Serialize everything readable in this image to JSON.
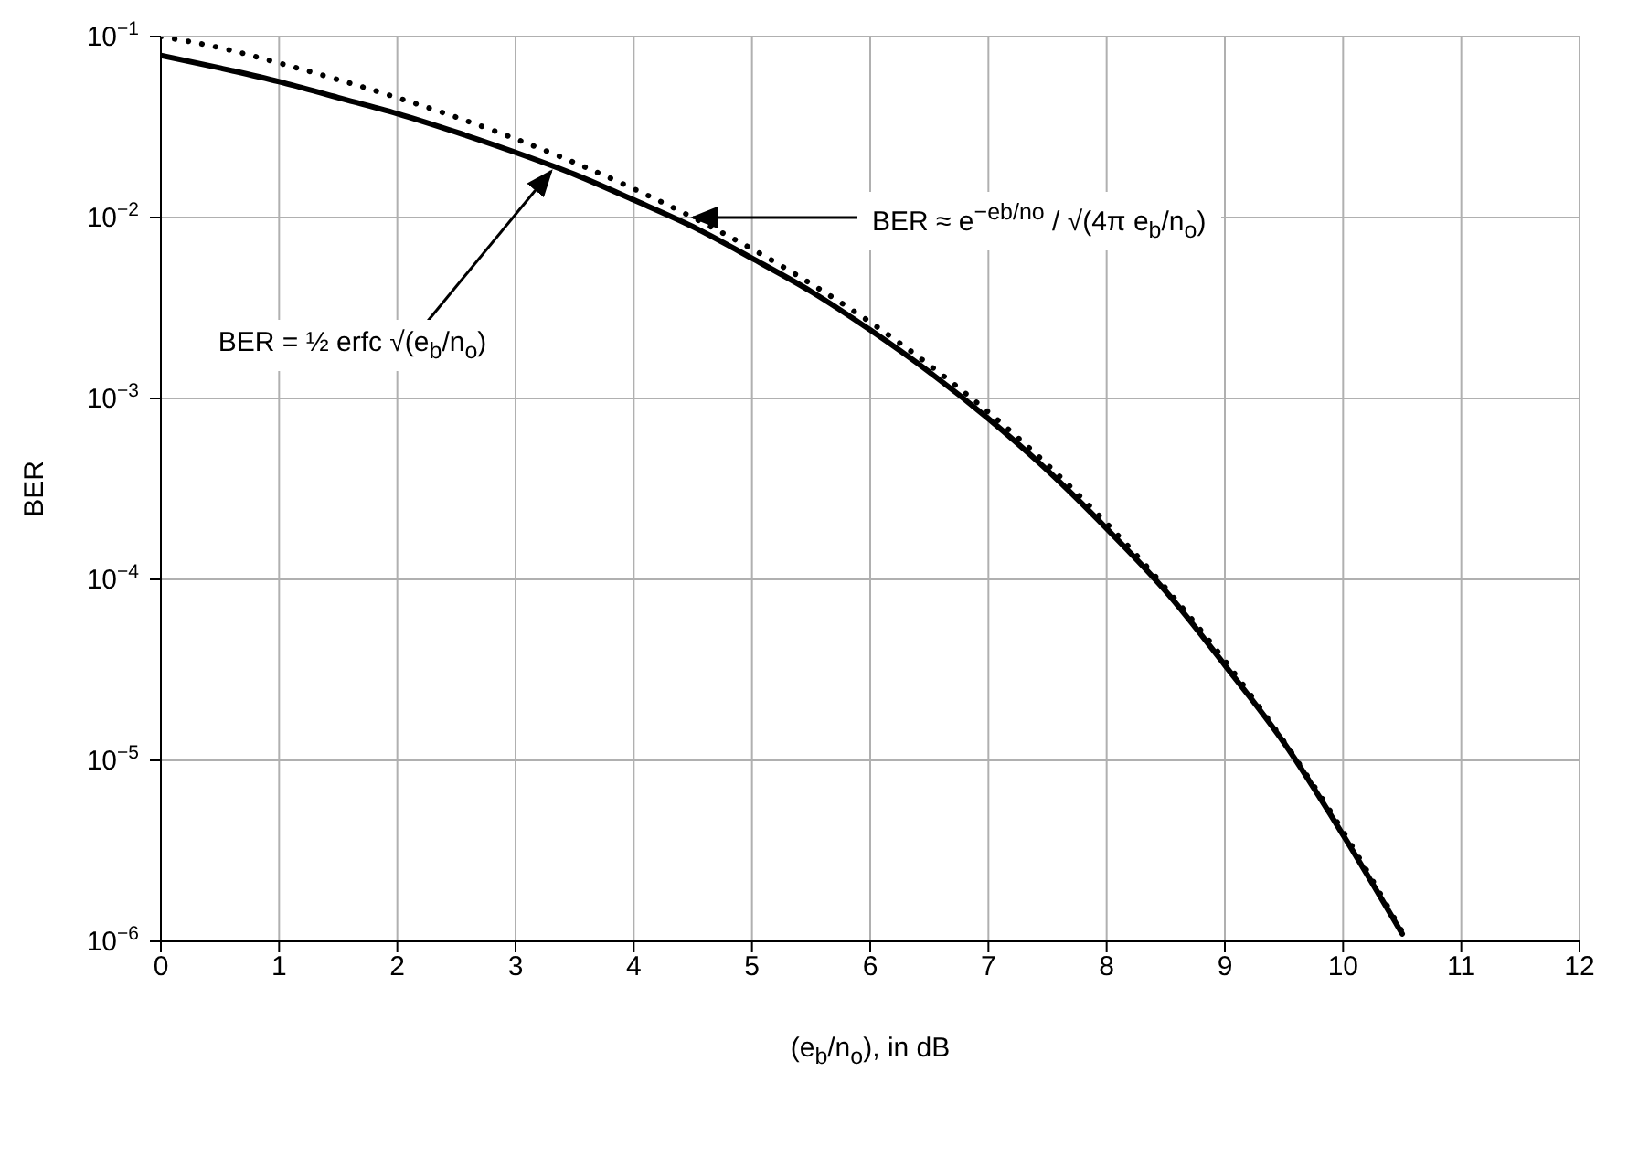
{
  "chart_data": {
    "type": "line",
    "ylabel": "BER",
    "xlabel": "(e$_{b}$/n$_{o}$), in dB",
    "log": "y",
    "grid": true,
    "marker": "none",
    "x": [
      0,
      0.5,
      1,
      1.5,
      2,
      2.5,
      3,
      3.5,
      4,
      4.5,
      5,
      5.5,
      6,
      6.5,
      7,
      7.5,
      8,
      8.5,
      9,
      9.5,
      10,
      10.5
    ],
    "series": [
      {
        "color": "#000000",
        "line_style": "solid",
        "values": [
          0.0787,
          0.067,
          0.0563,
          0.046,
          0.0375,
          0.0296,
          0.0229,
          0.0173,
          0.0125,
          0.0089,
          0.00595,
          0.0039,
          0.00239,
          0.0014,
          0.000773,
          0.0004,
          0.000191,
          8.6e-05,
          3.36e-05,
          1.25e-05,
          3.87e-06,
          1.1e-06
        ]
      },
      {
        "color": "#000000",
        "line_style": "dotted",
        "values": [
          0.1,
          0.0867,
          0.0714,
          0.0578,
          0.0459,
          0.0358,
          0.0272,
          0.0201,
          0.0144,
          0.01,
          0.0067,
          0.0043,
          0.00264,
          0.00153,
          0.00084,
          0.00043,
          0.000204,
          8.94e-05,
          3.55e-05,
          1.27e-05,
          4.05e-06,
          1.13e-06
        ]
      }
    ],
    "xlim": [
      0,
      12
    ],
    "xticks": [
      0,
      1,
      2,
      3,
      4,
      5,
      6,
      7,
      8,
      9,
      10,
      11,
      12
    ],
    "ylim": [
      1e-06,
      0.1
    ],
    "yticks": [
      {
        "value": 1e-06,
        "label": "10$^{−6}$"
      },
      {
        "value": 1e-05,
        "label": "10$^{−5}$"
      },
      {
        "value": 0.0001,
        "label": "10$^{−4}$"
      },
      {
        "value": 0.001,
        "label": "10$^{−3}$"
      },
      {
        "value": 0.01,
        "label": "10$^{−2}$"
      },
      {
        "value": 0.1,
        "label": "10$^{−1}$"
      }
    ],
    "annotations": [
      {
        "text": "BER = ½ erfc √(e$_{b}$/n$_{o}$)",
        "x": 3.3,
        "y": 0.018
      },
      {
        "text": "BER ≈ e$^{−eb/no}$ / √(4π e$_{b}$/n$_{o}$)",
        "x": 4.5,
        "y": 0.01
      }
    ]
  }
}
